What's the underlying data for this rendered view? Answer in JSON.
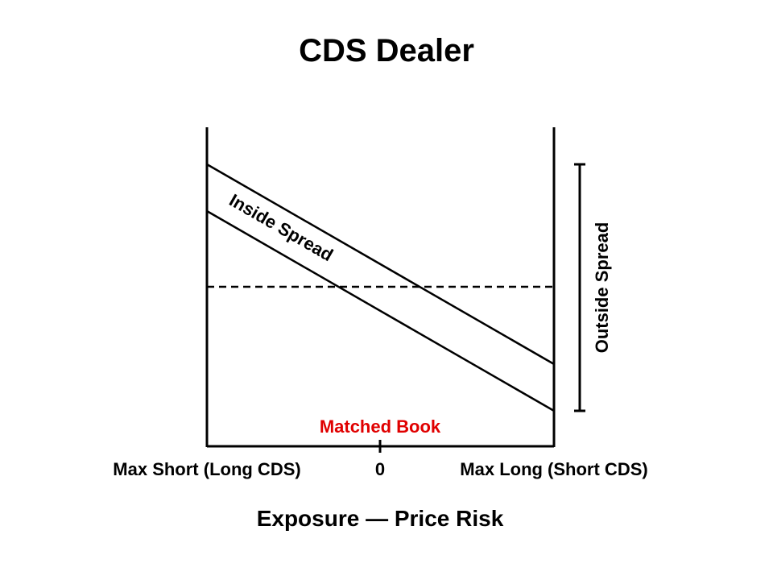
{
  "title": "CDS Dealer",
  "labels": {
    "inside_spread": "Inside Spread",
    "outside_spread": "Outside Spread",
    "matched_book": "Matched Book",
    "max_short": "Max Short (Long CDS)",
    "zero": "0",
    "max_long": "Max Long (Short CDS)",
    "axis_title": "Exposure — Price Risk"
  },
  "colors": {
    "text": "#000000",
    "line": "#000000",
    "matched_book": "#e00000",
    "background": "#ffffff"
  }
}
